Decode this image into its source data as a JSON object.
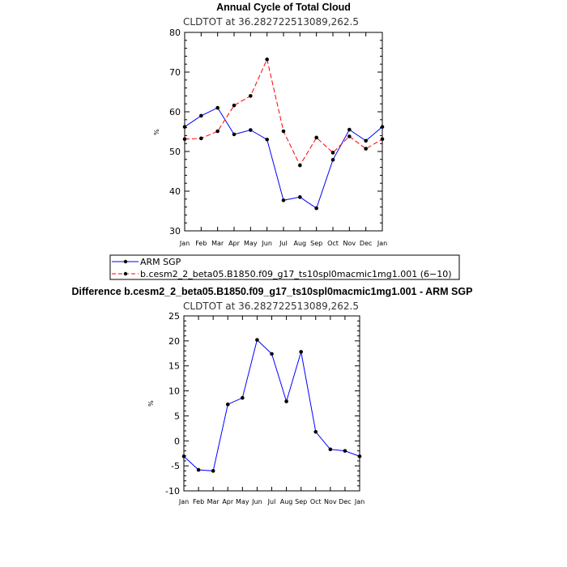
{
  "chart_data": [
    {
      "type": "line",
      "title": "Annual Cycle of Total Cloud",
      "subtitle": "CLDTOT at 36.282722513089,262.5",
      "xlabel": "",
      "ylabel": "%",
      "categories": [
        "Jan",
        "Feb",
        "Mar",
        "Apr",
        "May",
        "Jun",
        "Jul",
        "Aug",
        "Sep",
        "Oct",
        "Nov",
        "Dec",
        "Jan"
      ],
      "ylim": [
        30,
        80
      ],
      "yticks": [
        30,
        40,
        50,
        60,
        70,
        80
      ],
      "grid": false,
      "legend_position": "bottom",
      "series": [
        {
          "name": "ARM SGP",
          "color": "#0000ff",
          "style": "solid",
          "values": [
            56.2,
            59.0,
            61.0,
            54.3,
            55.4,
            53.0,
            37.7,
            38.5,
            35.7,
            47.9,
            55.5,
            52.7,
            56.2
          ]
        },
        {
          "name": "b.cesm2_2_beta05.B1850.f09_g17_ts10spl0macmic1mg1.001 (6−10)",
          "color": "#ff0000",
          "style": "dashed",
          "values": [
            53.1,
            53.3,
            55.1,
            61.6,
            64.0,
            73.2,
            55.1,
            46.5,
            53.5,
            49.7,
            53.8,
            50.7,
            53.1
          ]
        }
      ]
    },
    {
      "type": "line",
      "title": "Difference b.cesm2_2_beta05.B1850.f09_g17_ts10spl0macmic1mg1.001 - ARM SGP",
      "subtitle": "CLDTOT at 36.282722513089,262.5",
      "xlabel": "",
      "ylabel": "%",
      "categories": [
        "Jan",
        "Feb",
        "Mar",
        "Apr",
        "May",
        "Jun",
        "Jul",
        "Aug",
        "Sep",
        "Oct",
        "Nov",
        "Dec",
        "Jan"
      ],
      "ylim": [
        -10,
        25
      ],
      "yticks": [
        -10,
        -5,
        0,
        5,
        10,
        15,
        20,
        25
      ],
      "grid": false,
      "series": [
        {
          "color": "#0000ff",
          "style": "solid",
          "values": [
            -3.1,
            -5.8,
            -6.0,
            7.3,
            8.6,
            20.2,
            17.4,
            7.9,
            17.8,
            1.8,
            -1.7,
            -2.0,
            -3.1
          ]
        }
      ]
    }
  ]
}
